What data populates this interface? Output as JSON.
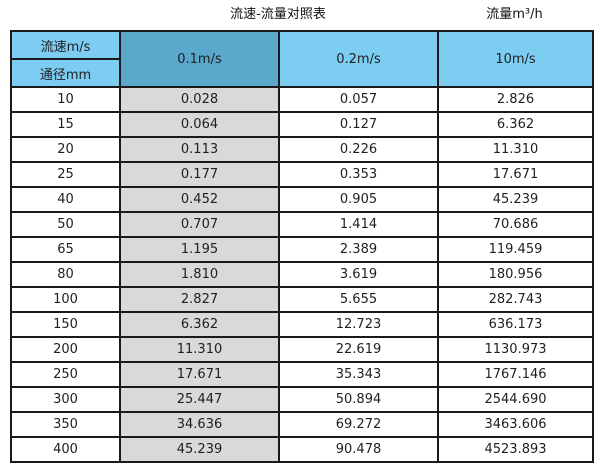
{
  "titles": {
    "main": "流速-流量对照表",
    "right": "流量m³/h"
  },
  "table": {
    "header": {
      "top_left": "流速m/s",
      "bottom_left": "通径mm",
      "col_01": "0.1m/s",
      "col_02": "0.2m/s",
      "col_10": "10m/s"
    },
    "rows": [
      [
        "10",
        "0.028",
        "0.057",
        "2.826"
      ],
      [
        "15",
        "0.064",
        "0.127",
        "6.362"
      ],
      [
        "20",
        "0.113",
        "0.226",
        "11.310"
      ],
      [
        "25",
        "0.177",
        "0.353",
        "17.671"
      ],
      [
        "40",
        "0.452",
        "0.905",
        "45.239"
      ],
      [
        "50",
        "0.707",
        "1.414",
        "70.686"
      ],
      [
        "65",
        "1.195",
        "2.389",
        "119.459"
      ],
      [
        "80",
        "1.810",
        "3.619",
        "180.956"
      ],
      [
        "100",
        "2.827",
        "5.655",
        "282.743"
      ],
      [
        "150",
        "6.362",
        "12.723",
        "636.173"
      ],
      [
        "200",
        "11.310",
        "22.619",
        "1130.973"
      ],
      [
        "250",
        "17.671",
        "35.343",
        "1767.146"
      ],
      [
        "300",
        "25.447",
        "50.894",
        "2544.690"
      ],
      [
        "350",
        "34.636",
        "69.272",
        "3463.606"
      ],
      [
        "400",
        "45.239",
        "90.478",
        "4523.893"
      ]
    ]
  },
  "colors": {
    "header_light": "#7dcdf2",
    "header_dark": "#5ba8cd",
    "first_col_gray": "#d9d9d9",
    "border": "#1a1a1a"
  },
  "chart_data": {
    "type": "table",
    "title": "流速-流量对照表",
    "unit_label": "流量m³/h",
    "columns": [
      "通径mm",
      "0.1m/s",
      "0.2m/s",
      "10m/s"
    ],
    "rows": [
      [
        10,
        0.028,
        0.057,
        2.826
      ],
      [
        15,
        0.064,
        0.127,
        6.362
      ],
      [
        20,
        0.113,
        0.226,
        11.31
      ],
      [
        25,
        0.177,
        0.353,
        17.671
      ],
      [
        40,
        0.452,
        0.905,
        45.239
      ],
      [
        50,
        0.707,
        1.414,
        70.686
      ],
      [
        65,
        1.195,
        2.389,
        119.459
      ],
      [
        80,
        1.81,
        3.619,
        180.956
      ],
      [
        100,
        2.827,
        5.655,
        282.743
      ],
      [
        150,
        6.362,
        12.723,
        636.173
      ],
      [
        200,
        11.31,
        22.619,
        1130.973
      ],
      [
        250,
        17.671,
        35.343,
        1767.146
      ],
      [
        300,
        25.447,
        50.894,
        2544.69
      ],
      [
        350,
        34.636,
        69.272,
        3463.606
      ],
      [
        400,
        45.239,
        90.478,
        4523.893
      ]
    ]
  }
}
